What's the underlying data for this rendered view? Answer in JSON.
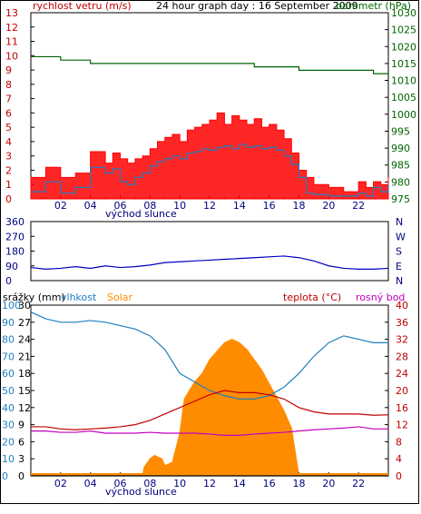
{
  "chart_data": [
    {
      "type": "line",
      "title": "24 hour graph day : 16 September 2009",
      "left_label": "rychlost vetru (m/s)",
      "right_label": "barometr (hPa)",
      "x_ticks": [
        "02",
        "04",
        "06",
        "08",
        "10",
        "12",
        "14",
        "16",
        "18",
        "20",
        "22",
        ""
      ],
      "sunrise_label": "východ slunce",
      "left_axis": {
        "min": 0,
        "max": 13,
        "ticks": [
          0,
          1,
          2,
          3,
          4,
          5,
          6,
          7,
          8,
          9,
          10,
          11,
          12,
          13
        ]
      },
      "right_axis": {
        "min": 975,
        "max": 1030,
        "ticks": [
          975,
          980,
          985,
          990,
          995,
          1000,
          1005,
          1010,
          1015,
          1020,
          1025,
          1030
        ]
      },
      "colors": {
        "gust": "#ff0000",
        "wind": "#1e7fc0",
        "pressure": "#006400"
      },
      "series": [
        {
          "key": "gust",
          "x": [
            0,
            1,
            2,
            3,
            4,
            5,
            5.5,
            6,
            6.5,
            7,
            7.5,
            8,
            8.5,
            9,
            9.5,
            10,
            10.5,
            11,
            11.5,
            12,
            12.5,
            13,
            13.5,
            14,
            14.5,
            15,
            15.5,
            16,
            16.5,
            17,
            17.5,
            18,
            18.5,
            19,
            20,
            21,
            22,
            22.5,
            23,
            23.5,
            24
          ],
          "values": [
            1.5,
            2.2,
            1.5,
            1.8,
            3.3,
            2.5,
            3.2,
            2.8,
            2.5,
            2.8,
            3.0,
            3.5,
            4.0,
            4.3,
            4.5,
            4.0,
            4.8,
            5.0,
            5.2,
            5.5,
            6.0,
            5.2,
            5.8,
            5.5,
            5.2,
            5.6,
            5.0,
            5.2,
            4.8,
            4.2,
            3.2,
            2.0,
            1.5,
            1.0,
            0.8,
            0.5,
            1.2,
            0.8,
            1.2,
            1.0,
            1.5
          ]
        },
        {
          "key": "wind",
          "x": [
            0,
            1,
            2,
            3,
            4,
            5,
            5.5,
            6,
            6.5,
            7,
            7.5,
            8,
            8.5,
            9,
            9.5,
            10,
            10.5,
            11,
            11.5,
            12,
            12.5,
            13,
            13.5,
            14,
            14.5,
            15,
            15.5,
            16,
            16.5,
            17,
            17.5,
            18,
            18.5,
            19,
            20,
            21,
            22,
            22.5,
            23,
            23.5,
            24
          ],
          "values": [
            0.5,
            1.2,
            0.4,
            0.8,
            2.2,
            1.8,
            2.1,
            1.2,
            1.0,
            1.5,
            1.8,
            2.3,
            2.6,
            2.8,
            3.0,
            2.8,
            3.2,
            3.3,
            3.5,
            3.4,
            3.6,
            3.7,
            3.5,
            3.8,
            3.6,
            3.7,
            3.5,
            3.6,
            3.4,
            3.0,
            2.4,
            1.5,
            0.4,
            0.3,
            0.2,
            0.2,
            0.4,
            0.2,
            0.8,
            0.5,
            1.0
          ]
        },
        {
          "key": "pressure",
          "x": [
            0,
            1,
            2,
            3,
            4,
            5,
            6,
            7,
            8,
            9,
            10,
            11,
            12,
            13,
            14,
            15,
            16,
            17,
            18,
            19,
            20,
            21,
            22,
            23,
            24
          ],
          "values": [
            1017,
            1017,
            1016,
            1016,
            1015,
            1015,
            1015,
            1015,
            1015,
            1015,
            1015,
            1015,
            1015,
            1015,
            1015,
            1014,
            1014,
            1014,
            1013,
            1013,
            1013,
            1013,
            1013,
            1012,
            1012
          ]
        }
      ]
    },
    {
      "type": "line",
      "title": "",
      "x_ticks": [
        "02",
        "04",
        "06",
        "08",
        "10",
        "12",
        "14",
        "16",
        "18",
        "20",
        "22",
        ""
      ],
      "left_axis": {
        "min": 0,
        "max": 360,
        "ticks": [
          0,
          90,
          180,
          270,
          360
        ]
      },
      "right_ticks": [
        "N",
        "W",
        "S",
        "E",
        "N"
      ],
      "colors": {
        "direction": "#0000c0"
      },
      "series": [
        {
          "key": "direction",
          "x": [
            0,
            1,
            2,
            3,
            4,
            5,
            6,
            7,
            8,
            9,
            10,
            11,
            12,
            13,
            14,
            15,
            16,
            17,
            18,
            19,
            20,
            21,
            22,
            23,
            24
          ],
          "values": [
            80,
            70,
            75,
            85,
            75,
            90,
            80,
            85,
            95,
            110,
            115,
            120,
            125,
            130,
            135,
            140,
            145,
            150,
            140,
            120,
            90,
            75,
            70,
            70,
            75
          ]
        }
      ]
    },
    {
      "type": "line",
      "title": "",
      "x_ticks": [
        "02",
        "04",
        "06",
        "08",
        "10",
        "12",
        "14",
        "16",
        "18",
        "20",
        "22",
        ""
      ],
      "sunrise_label": "východ slunce",
      "legend": [
        "srážky (mm)",
        "vlhkost",
        "Solar",
        "teplota (°C)",
        "rosný bod"
      ],
      "rain_axis": {
        "min": 0,
        "max": 30,
        "ticks": [
          0,
          3,
          6,
          9,
          12,
          15,
          18,
          21,
          24,
          27,
          30
        ]
      },
      "humidity_axis": {
        "min": 0,
        "max": 100,
        "ticks": [
          0,
          10,
          20,
          30,
          40,
          50,
          60,
          70,
          80,
          90,
          100
        ]
      },
      "temp_axis": {
        "min": 0,
        "max": 40,
        "ticks": [
          0,
          4,
          8,
          12,
          16,
          20,
          24,
          28,
          32,
          36,
          40
        ]
      },
      "colors": {
        "rain": "#000000",
        "humidity": "#1e7fc0",
        "solar": "#ff8c00",
        "temperature": "#c00000",
        "dewpoint": "#c000c0",
        "rain_label": "#000000",
        "humidity_label": "#1e7fc0",
        "solar_label": "#ff8c00",
        "temp_label": "#c00000",
        "dew_label": "#c000c0"
      },
      "series": [
        {
          "key": "humidity",
          "x": [
            0,
            1,
            2,
            3,
            4,
            5,
            6,
            7,
            8,
            9,
            10,
            11,
            12,
            13,
            14,
            15,
            16,
            17,
            18,
            19,
            20,
            21,
            22,
            23,
            24
          ],
          "values": [
            96,
            92,
            90,
            90,
            91,
            90,
            88,
            86,
            82,
            74,
            60,
            55,
            50,
            47,
            45,
            45,
            47,
            52,
            60,
            70,
            78,
            82,
            80,
            78,
            78
          ]
        },
        {
          "key": "temperature",
          "x": [
            0,
            1,
            2,
            3,
            4,
            5,
            6,
            7,
            8,
            9,
            10,
            11,
            12,
            13,
            14,
            15,
            16,
            17,
            18,
            19,
            20,
            21,
            22,
            23,
            24
          ],
          "values": [
            11.5,
            11.5,
            11,
            10.8,
            11,
            11.2,
            11.5,
            12,
            13,
            14.5,
            16,
            17.5,
            19,
            20,
            19.5,
            19.5,
            19,
            18,
            16,
            15,
            14.5,
            14.5,
            14.5,
            14.2,
            14.3
          ]
        },
        {
          "key": "dewpoint",
          "x": [
            0,
            1,
            2,
            3,
            4,
            5,
            6,
            7,
            8,
            9,
            10,
            11,
            12,
            13,
            14,
            15,
            16,
            17,
            18,
            19,
            20,
            21,
            22,
            23,
            24
          ],
          "values": [
            10.5,
            10.5,
            10.2,
            10.2,
            10.5,
            10,
            10,
            10,
            10.2,
            10,
            10,
            10,
            9.8,
            9.5,
            9.5,
            9.8,
            10,
            10.2,
            10.5,
            10.8,
            11,
            11.2,
            11.5,
            11,
            11
          ]
        },
        {
          "key": "solar",
          "x": [
            0,
            7.5,
            7.6,
            8,
            8.3,
            8.8,
            9,
            9.5,
            10,
            10.3,
            10.5,
            11,
            11.5,
            12,
            12.5,
            13,
            13.5,
            14,
            14.5,
            15,
            15.5,
            16,
            16.5,
            17,
            17.5,
            18,
            24
          ],
          "values": [
            0,
            0,
            5,
            10,
            12,
            10,
            6,
            8,
            25,
            45,
            48,
            55,
            60,
            68,
            73,
            78,
            80,
            78,
            74,
            68,
            62,
            54,
            46,
            38,
            28,
            0,
            0
          ]
        },
        {
          "key": "rain",
          "x": [
            0,
            24
          ],
          "values": [
            0,
            0
          ]
        }
      ]
    }
  ]
}
